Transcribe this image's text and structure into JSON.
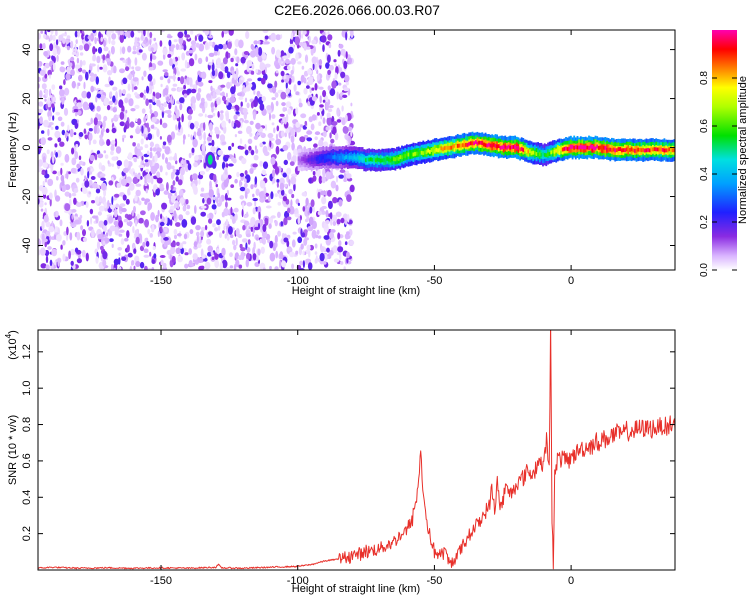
{
  "figure": {
    "title": "C2E6.2026.066.00.03.R07"
  },
  "chart_data": [
    {
      "type": "heatmap",
      "title": "C2E6.2026.066.00.03.R07",
      "xlabel": "Height of straight line (km)",
      "ylabel": "Frequency (Hz)",
      "xlim": [
        -195,
        38
      ],
      "ylim": [
        -50,
        48
      ],
      "x_ticks": [
        -150,
        -100,
        -50,
        0
      ],
      "y_ticks": [
        -40,
        -20,
        0,
        20,
        40
      ],
      "x_tick_labels": [
        "-150",
        "-100",
        "-50",
        "0"
      ],
      "y_tick_labels": [
        "-40",
        "-20",
        "0",
        "20",
        "40"
      ],
      "colorbar": {
        "label": "Normalized spectral amplitude",
        "range": [
          0,
          1
        ],
        "ticks": [
          0.0,
          0.2,
          0.4,
          0.6,
          0.8
        ],
        "tick_labels": [
          "0.0",
          "0.2",
          "0.4",
          "0.6",
          "0.8"
        ],
        "colormap": "rainbow (white-purple-blue-cyan-green-yellow-red-magenta)"
      },
      "features": {
        "noise_region_x": [
          -195,
          -80
        ],
        "noise_amplitude": 0.25,
        "signal_track": {
          "x": [
            -100,
            -95,
            -90,
            -85,
            -80,
            -75,
            -70,
            -65,
            -60,
            -55,
            -50,
            -45,
            -40,
            -35,
            -30,
            -25,
            -20,
            -15,
            -10,
            -5,
            0,
            5,
            10,
            15,
            20,
            25,
            30,
            35,
            38
          ],
          "frequency": [
            -5,
            -5,
            -4,
            -4,
            -4,
            -5,
            -5,
            -5,
            -3,
            -2,
            -1,
            0,
            1,
            2,
            1,
            0,
            0,
            -2,
            -3,
            -1,
            0,
            0,
            0,
            -1,
            -1,
            -1,
            -1,
            -1,
            -1
          ],
          "amplitude": [
            0.1,
            0.2,
            0.28,
            0.35,
            0.42,
            0.5,
            0.55,
            0.6,
            0.62,
            0.65,
            0.75,
            0.8,
            0.9,
            0.92,
            0.95,
            0.97,
            1.0,
            0.7,
            0.5,
            0.8,
            1.0,
            1.0,
            1.0,
            0.95,
            0.92,
            0.9,
            0.9,
            0.88,
            0.85
          ]
        },
        "isolated_spot": {
          "x": -132,
          "frequency": -5,
          "amplitude": 0.5
        }
      }
    },
    {
      "type": "line",
      "xlabel": "Height of straight line (km)",
      "ylabel": "SNR (10 * v/v)",
      "multiplier_label": "(x10",
      "multiplier_exponent": "4",
      "xlim": [
        -195,
        38
      ],
      "ylim": [
        0,
        1.32
      ],
      "x_ticks": [
        -150,
        -100,
        -50,
        0
      ],
      "y_ticks": [
        0.2,
        0.4,
        0.6,
        0.8,
        1.0,
        1.2
      ],
      "x_tick_labels": [
        "-150",
        "-100",
        "-50",
        "0"
      ],
      "y_tick_labels": [
        "0.2",
        "0.4",
        "0.6",
        "0.8",
        "1.0",
        "1.2"
      ],
      "line_color": "#e8302a",
      "series": [
        {
          "x": [
            -195,
            -190,
            -180,
            -170,
            -160,
            -150,
            -140,
            -130,
            -129,
            -128,
            -120,
            -110,
            -100,
            -95,
            -90,
            -85,
            -80,
            -75,
            -70,
            -67,
            -65,
            -62,
            -60,
            -58,
            -56,
            -55,
            -54,
            -53,
            -52,
            -51,
            -50,
            -48,
            -46,
            -45,
            -44,
            -42,
            -40,
            -38,
            -36,
            -34,
            -32,
            -30,
            -29,
            -28,
            -27,
            -26,
            -25,
            -24,
            -22,
            -20,
            -18,
            -16,
            -14,
            -12,
            -10,
            -9,
            -8,
            -7.5,
            -7,
            -6.5,
            -6,
            -5,
            -4,
            -2,
            0,
            3,
            6,
            9,
            12,
            15,
            18,
            21,
            24,
            27,
            30,
            33,
            36,
            38
          ],
          "values": [
            0.01,
            0.015,
            0.01,
            0.012,
            0.01,
            0.012,
            0.01,
            0.015,
            0.03,
            0.012,
            0.01,
            0.015,
            0.02,
            0.03,
            0.05,
            0.06,
            0.08,
            0.1,
            0.12,
            0.14,
            0.15,
            0.2,
            0.22,
            0.28,
            0.45,
            0.65,
            0.4,
            0.3,
            0.2,
            0.15,
            0.1,
            0.08,
            0.1,
            0.05,
            0.03,
            0.08,
            0.12,
            0.18,
            0.22,
            0.26,
            0.3,
            0.35,
            0.45,
            0.32,
            0.5,
            0.34,
            0.38,
            0.45,
            0.42,
            0.48,
            0.5,
            0.55,
            0.52,
            0.6,
            0.58,
            0.72,
            0.55,
            1.32,
            0.3,
            0.02,
            0.55,
            0.6,
            0.62,
            0.6,
            0.62,
            0.66,
            0.68,
            0.7,
            0.72,
            0.74,
            0.75,
            0.76,
            0.77,
            0.78,
            0.78,
            0.79,
            0.8,
            0.8
          ]
        }
      ]
    }
  ]
}
